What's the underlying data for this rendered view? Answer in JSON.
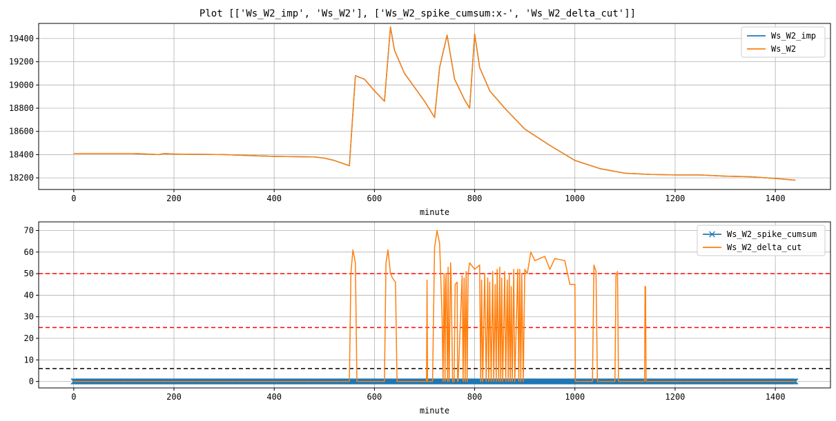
{
  "colors": {
    "blue": "#1f77b4",
    "orange": "#ff7f0e",
    "grid": "#b0b0b0",
    "red": "#ff0000",
    "black": "#000000"
  },
  "chart_data": {
    "title": "Plot [['Ws_W2_imp', 'Ws_W2'], ['Ws_W2_spike_cumsum:x-', 'Ws_W2_delta_cut']]",
    "charts": [
      {
        "type": "line",
        "xlabel": "minute",
        "ylabel": "",
        "xlim": [
          -70,
          1510
        ],
        "ylim": [
          18100,
          19530
        ],
        "grid": true,
        "legend_position": "top-right",
        "x_ticks": [
          0,
          200,
          400,
          600,
          800,
          1000,
          1200,
          1400
        ],
        "x_tick_labels": [
          "0",
          "200",
          "400",
          "600",
          "800",
          "1000",
          "1200",
          "1400"
        ],
        "y_ticks": [
          18200,
          18400,
          18600,
          18800,
          19000,
          19200,
          19400
        ],
        "y_tick_labels": [
          "18200",
          "18400",
          "18600",
          "18800",
          "19000",
          "19200",
          "19400"
        ],
        "series": [
          {
            "name": "Ws_W2_imp",
            "color": "#1f77b4",
            "x": [
              0,
              120,
              170,
              180,
              200,
              300,
              400,
              480,
              500,
              520,
              550,
              562,
              580,
              600,
              620,
              632,
              640,
              660,
              680,
              700,
              720,
              730,
              745,
              760,
              780,
              790,
              800,
              810,
              830,
              860,
              900,
              950,
              1000,
              1050,
              1100,
              1150,
              1200,
              1250,
              1300,
              1350,
              1400,
              1440
            ],
            "values": [
              18410,
              18410,
              18400,
              18410,
              18405,
              18400,
              18385,
              18380,
              18370,
              18350,
              18305,
              19080,
              19050,
              18950,
              18860,
              19500,
              19300,
              19100,
              18980,
              18860,
              18720,
              19150,
              19430,
              19050,
              18870,
              18800,
              19440,
              19150,
              18950,
              18800,
              18620,
              18480,
              18350,
              18280,
              18240,
              18230,
              18225,
              18225,
              18215,
              18210,
              18195,
              18180
            ]
          },
          {
            "name": "Ws_W2",
            "color": "#ff7f0e",
            "x": [
              0,
              120,
              170,
              180,
              200,
              300,
              400,
              480,
              500,
              520,
              550,
              562,
              580,
              600,
              620,
              632,
              640,
              660,
              680,
              700,
              720,
              730,
              745,
              760,
              780,
              790,
              800,
              810,
              830,
              860,
              900,
              950,
              1000,
              1050,
              1100,
              1150,
              1200,
              1250,
              1300,
              1350,
              1400,
              1440
            ],
            "values": [
              18410,
              18410,
              18400,
              18410,
              18405,
              18400,
              18385,
              18380,
              18370,
              18350,
              18305,
              19080,
              19050,
              18950,
              18860,
              19500,
              19300,
              19100,
              18980,
              18860,
              18720,
              19150,
              19430,
              19050,
              18870,
              18800,
              19440,
              19150,
              18950,
              18800,
              18620,
              18480,
              18350,
              18280,
              18240,
              18230,
              18225,
              18225,
              18215,
              18210,
              18195,
              18180
            ]
          }
        ],
        "hlines": []
      },
      {
        "type": "line",
        "xlabel": "minute",
        "ylabel": "",
        "xlim": [
          -70,
          1510
        ],
        "ylim": [
          -3,
          74
        ],
        "grid": true,
        "legend_position": "top-right",
        "x_ticks": [
          0,
          200,
          400,
          600,
          800,
          1000,
          1200,
          1400
        ],
        "x_tick_labels": [
          "0",
          "200",
          "400",
          "600",
          "800",
          "1000",
          "1200",
          "1400"
        ],
        "y_ticks": [
          0,
          10,
          20,
          30,
          40,
          50,
          60,
          70
        ],
        "y_tick_labels": [
          "0",
          "10",
          "20",
          "30",
          "40",
          "50",
          "60",
          "70"
        ],
        "series": [
          {
            "name": "Ws_W2_spike_cumsum",
            "color": "#1f77b4",
            "marker": "x",
            "x": [
              0,
              1440
            ],
            "values": [
              0,
              0
            ]
          },
          {
            "name": "Ws_W2_delta_cut",
            "color": "#ff7f0e",
            "x": [
              0,
              550,
              553,
              557,
              562,
              565,
              620,
              623,
              627,
              632,
              636,
              642,
              645,
              704,
              705,
              706,
              716,
              720,
              725,
              730,
              735,
              737,
              739,
              741,
              742,
              743,
              746,
              747,
              749,
              752,
              753,
              756,
              759,
              761,
              765,
              766,
              767,
              775,
              777,
              779,
              781,
              783,
              785,
              787,
              790,
              800,
              810,
              812,
              814,
              816,
              820,
              823,
              826,
              828,
              830,
              833,
              836,
              838,
              841,
              843,
              845,
              848,
              850,
              852,
              854,
              856,
              860,
              862,
              865,
              867,
              869,
              871,
              873,
              875,
              878,
              880,
              886,
              888,
              890,
              892,
              894,
              897,
              900,
              905,
              912,
              920,
              930,
              940,
              950,
              960,
              980,
              990,
              1000,
              1001,
              1035,
              1038,
              1042,
              1045,
              1080,
              1082,
              1085,
              1087,
              1139,
              1140,
              1141,
              1142,
              1440
            ],
            "values": [
              0,
              0,
              50,
              61,
              55,
              0,
              0,
              55,
              61,
              50,
              48,
              46,
              0,
              0,
              47,
              0,
              0,
              62,
              70,
              64,
              30,
              0,
              50,
              0,
              44,
              50,
              0,
              53,
              0,
              55,
              48,
              0,
              0,
              45,
              46,
              0,
              0,
              49,
              0,
              48,
              0,
              51,
              0,
              50,
              55,
              52,
              54,
              0,
              47,
              0,
              50,
              0,
              48,
              0,
              46,
              0,
              51,
              0,
              45,
              0,
              52,
              0,
              53,
              0,
              48,
              0,
              51,
              0,
              47,
              0,
              50,
              0,
              44,
              0,
              52,
              0,
              52,
              0,
              52,
              0,
              50,
              0,
              52,
              50,
              60,
              56,
              57,
              58,
              52,
              57,
              56,
              45,
              45,
              0,
              0,
              54,
              51,
              0,
              0,
              49,
              51,
              0,
              0,
              44,
              44,
              0,
              0
            ]
          }
        ],
        "hlines": [
          {
            "value": 50,
            "color": "#ff0000"
          },
          {
            "value": 25,
            "color": "#ff0000"
          },
          {
            "value": 6,
            "color": "#000000"
          }
        ]
      }
    ]
  }
}
